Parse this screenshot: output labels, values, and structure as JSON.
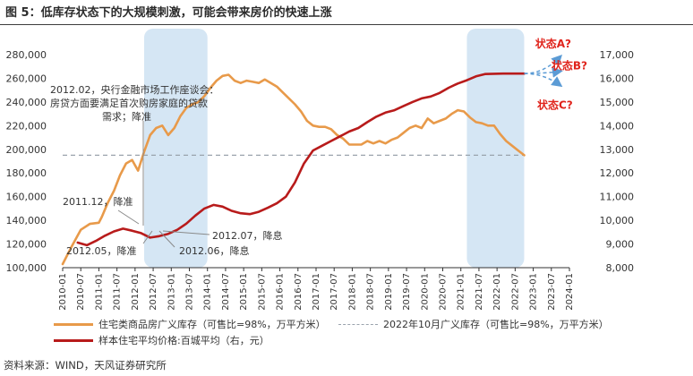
{
  "title": "图 5：低库存状态下的大规模刺激，可能会带来房价的快速上涨",
  "source": "资料来源：WIND，天风证券研究所",
  "colors": {
    "inventory": "#E89A4A",
    "price": "#B81B1B",
    "reference": "#9AA3AD",
    "forecast": "#5B9BD5",
    "shade": "#D5E6F4",
    "scenario_text": "#E0241C"
  },
  "chart_data": {
    "type": "line",
    "x_start": "2010-01",
    "x_tick_labels": [
      "2010-01",
      "2010-07",
      "2011-01",
      "2011-07",
      "2012-01",
      "2012-07",
      "2013-01",
      "2013-07",
      "2014-01",
      "2014-07",
      "2015-01",
      "2015-07",
      "2016-01",
      "2016-07",
      "2017-01",
      "2017-07",
      "2018-01",
      "2018-07",
      "2019-01",
      "2019-07",
      "2020-01",
      "2020-07",
      "2021-01",
      "2021-07",
      "2022-01",
      "2022-07",
      "2023-01",
      "2023-07",
      "2024-01"
    ],
    "y_left": {
      "min": 100000,
      "max": 280000,
      "ticks": [
        100000,
        120000,
        140000,
        160000,
        180000,
        200000,
        220000,
        240000,
        260000,
        280000
      ]
    },
    "y_right": {
      "min": 8000,
      "max": 17000,
      "ticks": [
        8000,
        9000,
        10000,
        11000,
        12000,
        13000,
        14000,
        15000,
        16000,
        17000
      ]
    },
    "shaded_periods": [
      {
        "start": "2012-04",
        "end": "2014-01"
      },
      {
        "start": "2021-03",
        "end": "2022-10"
      }
    ],
    "reference_line": {
      "name": "2022年10月广义库存（可售比=98%，万平方米）",
      "value": 195000
    },
    "series": [
      {
        "name": "住宅类商品房广义库存（可售比=98%，万平方米）",
        "axis": "left",
        "points": [
          [
            "2010-01",
            103000
          ],
          [
            "2010-04",
            118000
          ],
          [
            "2010-07",
            132000
          ],
          [
            "2010-10",
            137000
          ],
          [
            "2011-01",
            138000
          ],
          [
            "2011-02",
            143000
          ],
          [
            "2011-04",
            155000
          ],
          [
            "2011-06",
            165000
          ],
          [
            "2011-08",
            178000
          ],
          [
            "2011-10",
            188000
          ],
          [
            "2011-12",
            191000
          ],
          [
            "2012-02",
            182000
          ],
          [
            "2012-04",
            198000
          ],
          [
            "2012-06",
            212000
          ],
          [
            "2012-08",
            218000
          ],
          [
            "2012-10",
            220000
          ],
          [
            "2012-12",
            212000
          ],
          [
            "2013-02",
            218000
          ],
          [
            "2013-04",
            228000
          ],
          [
            "2013-06",
            235000
          ],
          [
            "2013-08",
            238000
          ],
          [
            "2013-10",
            240000
          ],
          [
            "2013-12",
            245000
          ],
          [
            "2014-02",
            252000
          ],
          [
            "2014-04",
            258000
          ],
          [
            "2014-06",
            262000
          ],
          [
            "2014-08",
            263000
          ],
          [
            "2014-10",
            258000
          ],
          [
            "2014-12",
            256000
          ],
          [
            "2015-02",
            258000
          ],
          [
            "2015-04",
            257000
          ],
          [
            "2015-06",
            256000
          ],
          [
            "2015-08",
            259000
          ],
          [
            "2015-10",
            256000
          ],
          [
            "2015-12",
            253000
          ],
          [
            "2016-02",
            248000
          ],
          [
            "2016-04",
            243000
          ],
          [
            "2016-06",
            238000
          ],
          [
            "2016-08",
            232000
          ],
          [
            "2016-10",
            224000
          ],
          [
            "2016-12",
            220000
          ],
          [
            "2017-02",
            219000
          ],
          [
            "2017-04",
            219000
          ],
          [
            "2017-06",
            217000
          ],
          [
            "2017-08",
            212000
          ],
          [
            "2017-10",
            209000
          ],
          [
            "2017-12",
            204000
          ],
          [
            "2018-02",
            204000
          ],
          [
            "2018-04",
            204000
          ],
          [
            "2018-06",
            207000
          ],
          [
            "2018-08",
            205000
          ],
          [
            "2018-10",
            207000
          ],
          [
            "2018-12",
            205000
          ],
          [
            "2019-02",
            208000
          ],
          [
            "2019-04",
            210000
          ],
          [
            "2019-06",
            214000
          ],
          [
            "2019-08",
            218000
          ],
          [
            "2019-10",
            220000
          ],
          [
            "2019-12",
            218000
          ],
          [
            "2020-02",
            226000
          ],
          [
            "2020-04",
            222000
          ],
          [
            "2020-06",
            224000
          ],
          [
            "2020-08",
            226000
          ],
          [
            "2020-10",
            230000
          ],
          [
            "2020-12",
            233000
          ],
          [
            "2021-02",
            232000
          ],
          [
            "2021-04",
            227000
          ],
          [
            "2021-06",
            223000
          ],
          [
            "2021-08",
            222000
          ],
          [
            "2021-10",
            220000
          ],
          [
            "2021-12",
            220000
          ],
          [
            "2022-02",
            213000
          ],
          [
            "2022-04",
            207000
          ],
          [
            "2022-06",
            203000
          ],
          [
            "2022-08",
            199000
          ],
          [
            "2022-10",
            195000
          ]
        ]
      },
      {
        "name": "样本住宅平均价格:百城平均（右，元）",
        "axis": "right",
        "points": [
          [
            "2010-06",
            9060
          ],
          [
            "2010-09",
            8950
          ],
          [
            "2010-12",
            9130
          ],
          [
            "2011-03",
            9350
          ],
          [
            "2011-06",
            9530
          ],
          [
            "2011-09",
            9650
          ],
          [
            "2011-12",
            9560
          ],
          [
            "2012-03",
            9460
          ],
          [
            "2012-06",
            9270
          ],
          [
            "2012-09",
            9330
          ],
          [
            "2012-12",
            9430
          ],
          [
            "2013-03",
            9600
          ],
          [
            "2013-06",
            9860
          ],
          [
            "2013-09",
            10200
          ],
          [
            "2013-12",
            10500
          ],
          [
            "2014-03",
            10650
          ],
          [
            "2014-06",
            10580
          ],
          [
            "2014-09",
            10400
          ],
          [
            "2014-12",
            10300
          ],
          [
            "2015-03",
            10260
          ],
          [
            "2015-06",
            10360
          ],
          [
            "2015-09",
            10530
          ],
          [
            "2015-12",
            10720
          ],
          [
            "2016-03",
            11000
          ],
          [
            "2016-06",
            11600
          ],
          [
            "2016-09",
            12400
          ],
          [
            "2016-12",
            12950
          ],
          [
            "2017-03",
            13150
          ],
          [
            "2017-06",
            13350
          ],
          [
            "2017-09",
            13550
          ],
          [
            "2017-12",
            13750
          ],
          [
            "2018-03",
            13900
          ],
          [
            "2018-06",
            14150
          ],
          [
            "2018-09",
            14380
          ],
          [
            "2018-12",
            14550
          ],
          [
            "2019-03",
            14650
          ],
          [
            "2019-06",
            14830
          ],
          [
            "2019-09",
            15000
          ],
          [
            "2019-12",
            15150
          ],
          [
            "2020-03",
            15230
          ],
          [
            "2020-06",
            15380
          ],
          [
            "2020-09",
            15600
          ],
          [
            "2020-12",
            15780
          ],
          [
            "2021-03",
            15920
          ],
          [
            "2021-06",
            16080
          ],
          [
            "2021-09",
            16180
          ],
          [
            "2021-12",
            16190
          ],
          [
            "2022-03",
            16200
          ],
          [
            "2022-06",
            16200
          ],
          [
            "2022-09",
            16200
          ],
          [
            "2022-10",
            16200
          ]
        ]
      }
    ],
    "forecast_paths": [
      {
        "label": "状态A?",
        "from": [
          "2022-10",
          16200
        ],
        "to": [
          "2023-10",
          16920
        ]
      },
      {
        "label": "状态B?",
        "from": [
          "2022-10",
          16200
        ],
        "to": [
          "2023-10",
          16300
        ]
      },
      {
        "label": "状态C?",
        "from": [
          "2022-10",
          16200
        ],
        "to": [
          "2023-10",
          15700
        ]
      }
    ],
    "annotations": [
      {
        "text_lines": [
          "2012.02，央行金融市场工作座谈会：",
          "房贷方面要满足首次购房家庭的贷款",
          "需求；降准"
        ],
        "x": "2012-02"
      },
      {
        "text_lines": [
          "2011.12，降准"
        ],
        "x": "2011-12"
      },
      {
        "text_lines": [
          "2012.05，降准"
        ],
        "x": "2012-05"
      },
      {
        "text_lines": [
          "2012.06，降息"
        ],
        "x": "2012-06"
      },
      {
        "text_lines": [
          "2012.07，降息"
        ],
        "x": "2012-07"
      }
    ]
  }
}
